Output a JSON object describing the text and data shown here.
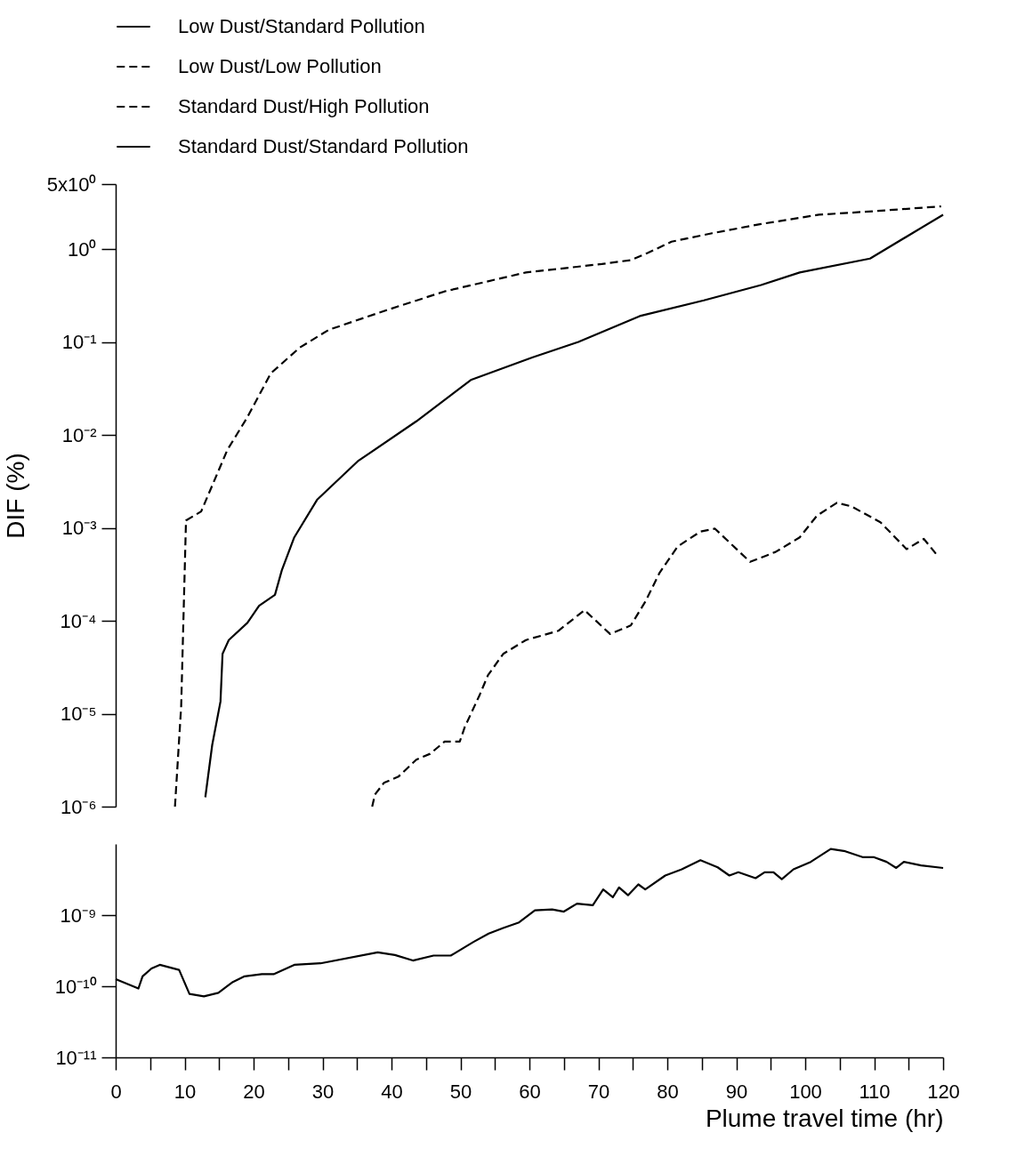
{
  "chart_data": [
    {
      "type": "line",
      "ylabel": "DIF  (%)",
      "xlim": [
        0,
        120
      ],
      "tick_labels": "y",
      "log": true,
      "ylim": [
        1e-06,
        5
      ],
      "yticks": [
        {
          "value": 1e-06,
          "label": "10⁻⁶"
        },
        {
          "value": 1e-05,
          "label": "10⁻⁵"
        },
        {
          "value": 0.0001,
          "label": "10⁻⁴"
        },
        {
          "value": 0.001,
          "label": "10⁻³"
        },
        {
          "value": 0.01,
          "label": "10⁻²"
        },
        {
          "value": 0.1,
          "label": "10⁻¹"
        },
        {
          "value": 1,
          "label": "10⁰"
        },
        {
          "value": 5,
          "label": "5x10⁰"
        }
      ],
      "legend": "top",
      "grid": false,
      "series": [
        {
          "name": "Low Dust/Low Pollution",
          "color": "#000000",
          "line_style": "dashed",
          "x": [
            37.2,
            37.6,
            38.9,
            41,
            43.6,
            45.6,
            47.7,
            49.9,
            50.6,
            52.8,
            54,
            56.2,
            59.5,
            64.2,
            68,
            71.7,
            74.7,
            76.8,
            78.9,
            81.5,
            84.8,
            86.9,
            92,
            95.7,
            99.2,
            101.7,
            104.6,
            106.7,
            110.9,
            114.7,
            117.2,
            119.1
          ],
          "values": [
            1e-06,
            1.35e-06,
            1.8e-06,
            2.1e-06,
            3.2e-06,
            3.7e-06,
            5e-06,
            5e-06,
            7.1e-06,
            1.6e-05,
            2.6e-05,
            4.4e-05,
            6.2e-05,
            7.8e-05,
            0.00013,
            7.2e-05,
            8.9e-05,
            0.00016,
            0.00033,
            0.00063,
            0.00091,
            0.00098,
            0.00043,
            0.00055,
            0.00079,
            0.00135,
            0.00186,
            0.0017,
            0.00115,
            0.00059,
            0.00076,
            0.00051
          ]
        },
        {
          "name": "Standard Dust/High Pollution",
          "color": "#000000",
          "line_style": "dashed",
          "x": [
            8.6,
            9.5,
            10.2,
            12.4,
            16.2,
            19.1,
            22.5,
            26.7,
            30.9,
            39.3,
            47.7,
            59.5,
            70.5,
            74.7,
            77.2,
            80.6,
            86.5,
            93.6,
            102,
            110.5,
            119.7
          ],
          "values": [
            1e-06,
            1.2e-05,
            0.0012,
            0.0015,
            0.0069,
            0.0155,
            0.046,
            0.087,
            0.135,
            0.22,
            0.35,
            0.56,
            0.69,
            0.76,
            0.91,
            1.2,
            1.48,
            1.86,
            2.34,
            2.57,
            2.88
          ]
        },
        {
          "name": "Standard Dust/Standard Pollution",
          "color": "#000000",
          "line_style": "solid",
          "x": [
            13,
            14,
            15.2,
            15.5,
            16.4,
            19.1,
            20.8,
            23.1,
            24.1,
            25.9,
            29.2,
            35.1,
            43.6,
            51.5,
            60.4,
            67.1,
            76,
            85.3,
            93.6,
            99.2,
            109.4,
            120
          ],
          "values": [
            1.26e-06,
            4.6e-06,
            1.35e-05,
            4.4e-05,
            6.2e-05,
            9.5e-05,
            0.000145,
            0.00019,
            0.00035,
            0.00079,
            0.002,
            0.0052,
            0.014,
            0.039,
            0.068,
            0.1,
            0.19,
            0.28,
            0.41,
            0.56,
            0.79,
            2.34
          ]
        }
      ]
    },
    {
      "type": "line",
      "xlabel": "Plume travel time (hr)",
      "xlim": [
        0,
        120
      ],
      "xticks": [
        0,
        {
          "value": 5,
          "label": null
        },
        10,
        {
          "value": 15,
          "label": null
        },
        20,
        {
          "value": 25,
          "label": null
        },
        30,
        {
          "value": 35,
          "label": null
        },
        40,
        {
          "value": 45,
          "label": null
        },
        50,
        {
          "value": 55,
          "label": null
        },
        60,
        {
          "value": 65,
          "label": null
        },
        70,
        {
          "value": 75,
          "label": null
        },
        80,
        {
          "value": 85,
          "label": null
        },
        90,
        {
          "value": 95,
          "label": null
        },
        100,
        {
          "value": 105,
          "label": null
        },
        110,
        {
          "value": 115,
          "label": null
        },
        120
      ],
      "log": true,
      "ylim": [
        1e-11,
        1e-08
      ],
      "yticks": [
        {
          "value": 1e-11,
          "label": "10⁻¹¹"
        },
        {
          "value": 1e-10,
          "label": "10⁻¹⁰"
        },
        {
          "value": 1e-09,
          "label": "10⁻⁹"
        }
      ],
      "legend": "top",
      "grid": false,
      "series": [
        {
          "name": "Low Dust/Standard Pollution",
          "color": "#000000",
          "line_style": "solid",
          "x": [
            0,
            3.3,
            3.9,
            5.2,
            6.4,
            9.2,
            10.7,
            12.8,
            14.9,
            17,
            18.7,
            21.2,
            22.9,
            25.9,
            29.7,
            38,
            40.5,
            43.1,
            46.1,
            48.6,
            51.9,
            54.1,
            56.2,
            58.5,
            60.8,
            63.3,
            65,
            66.9,
            69.2,
            70.7,
            72.1,
            73,
            74.3,
            75.8,
            76.8,
            79.7,
            82.1,
            84.8,
            87.3,
            89,
            90.3,
            92.8,
            94.1,
            95.4,
            96.6,
            98.3,
            100.8,
            103.7,
            105.8,
            108.4,
            110,
            111.8,
            113.2,
            114.3,
            116.8,
            120
          ],
          "values": [
            1.26e-10,
            9.3e-11,
            1.38e-10,
            1.78e-10,
            2e-10,
            1.7e-10,
            7.8e-11,
            7.2e-11,
            8.1e-11,
            1.15e-10,
            1.38e-10,
            1.48e-10,
            1.48e-10,
            2e-10,
            2.1e-10,
            3e-10,
            2.75e-10,
            2.3e-10,
            2.7e-10,
            2.7e-10,
            4.2e-10,
            5.5e-10,
            6.6e-10,
            7.9e-10,
            1.17e-09,
            1.2e-09,
            1.12e-09,
            1.45e-09,
            1.38e-09,
            2.3e-09,
            1.78e-09,
            2.45e-09,
            1.9e-09,
            2.7e-09,
            2.3e-09,
            3.6e-09,
            4.4e-09,
            5.9e-09,
            4.7e-09,
            3.6e-09,
            4e-09,
            3.3e-09,
            4e-09,
            4e-09,
            3.2e-09,
            4.4e-09,
            5.6e-09,
            8.5e-09,
            7.9e-09,
            6.5e-09,
            6.5e-09,
            5.6e-09,
            4.6e-09,
            5.6e-09,
            5e-09,
            4.6e-09
          ]
        }
      ]
    }
  ]
}
